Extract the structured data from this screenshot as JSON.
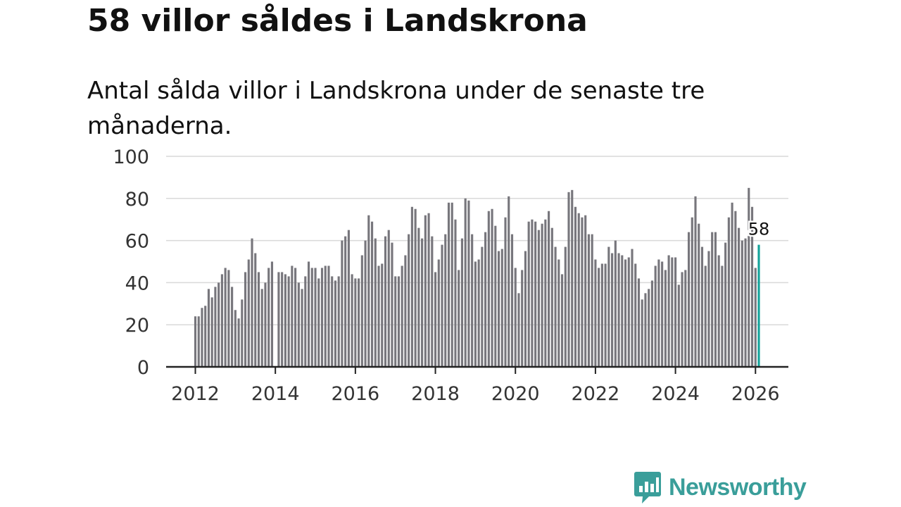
{
  "title": "58 villor såldes i Landskrona",
  "subtitle": "Antal sålda villor i Landskrona under de senaste tre månaderna.",
  "brand": {
    "name": "Newsworthy",
    "color": "#3a9e9a"
  },
  "colors": {
    "bar": "#77767c",
    "highlight": "#14a39a",
    "grid": "#d9d9d9",
    "axis": "#222222"
  },
  "chart_data": {
    "type": "bar",
    "title": "58 villor såldes i Landskrona",
    "xlabel": "",
    "ylabel": "",
    "ylim": [
      0,
      100
    ],
    "yticks": [
      "0",
      "20",
      "40",
      "60",
      "80",
      "100"
    ],
    "xticks": [
      "2012",
      "2014",
      "2016",
      "2018",
      "2020",
      "2022",
      "2024",
      "2026"
    ],
    "x_start": "2012-01",
    "x_end": "2026-02",
    "grid": true,
    "highlight_label": "58",
    "values": [
      24,
      24,
      28,
      29,
      37,
      33,
      38,
      40,
      44,
      47,
      46,
      38,
      27,
      23,
      32,
      45,
      51,
      61,
      54,
      45,
      37,
      40,
      47,
      50,
      null,
      45,
      45,
      44,
      43,
      48,
      47,
      40,
      37,
      43,
      50,
      47,
      47,
      42,
      47,
      48,
      48,
      43,
      41,
      43,
      60,
      62,
      65,
      44,
      42,
      42,
      53,
      60,
      72,
      69,
      61,
      48,
      49,
      62,
      65,
      59,
      43,
      43,
      48,
      53,
      63,
      76,
      75,
      66,
      61,
      72,
      73,
      62,
      45,
      51,
      58,
      63,
      78,
      78,
      70,
      46,
      61,
      80,
      79,
      63,
      50,
      51,
      57,
      64,
      74,
      75,
      67,
      55,
      56,
      71,
      81,
      63,
      47,
      35,
      46,
      55,
      69,
      70,
      69,
      65,
      68,
      70,
      74,
      66,
      57,
      51,
      44,
      57,
      83,
      84,
      76,
      73,
      71,
      72,
      63,
      63,
      51,
      47,
      49,
      49,
      57,
      54,
      60,
      54,
      53,
      51,
      52,
      56,
      49,
      42,
      32,
      35,
      37,
      41,
      48,
      51,
      50,
      46,
      53,
      52,
      52,
      39,
      45,
      46,
      64,
      71,
      81,
      68,
      57,
      48,
      55,
      64,
      64,
      53,
      48,
      59,
      71,
      78,
      74,
      66,
      60,
      61,
      85,
      76,
      47,
      58
    ]
  }
}
